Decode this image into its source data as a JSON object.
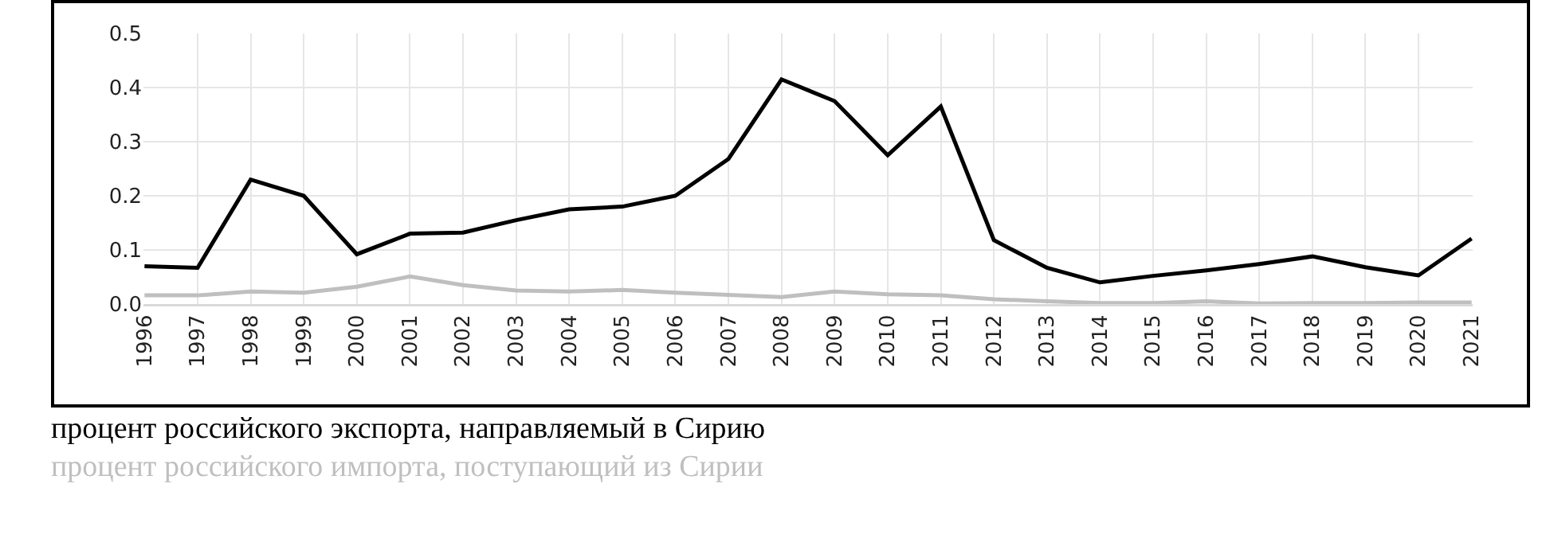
{
  "chart_data": {
    "type": "line",
    "categories": [
      "1996",
      "1997",
      "1998",
      "1999",
      "2000",
      "2001",
      "2002",
      "2003",
      "2004",
      "2005",
      "2006",
      "2007",
      "2008",
      "2009",
      "2010",
      "2011",
      "2012",
      "2013",
      "2014",
      "2015",
      "2016",
      "2017",
      "2018",
      "2019",
      "2020",
      "2021"
    ],
    "series": [
      {
        "name": "процент российского экспорта, направляемый в Сирию",
        "color": "#000000",
        "values": [
          0.07,
          0.067,
          0.23,
          0.2,
          0.092,
          0.13,
          0.132,
          0.155,
          0.175,
          0.18,
          0.2,
          0.268,
          0.415,
          0.375,
          0.275,
          0.365,
          0.118,
          0.067,
          0.04,
          0.052,
          0.062,
          0.074,
          0.088,
          0.068,
          0.053,
          0.121
        ]
      },
      {
        "name": "процент российского импорта, поступающий из Сирии",
        "color": "#bfbfbf",
        "values": [
          0.016,
          0.016,
          0.023,
          0.021,
          0.032,
          0.051,
          0.035,
          0.025,
          0.023,
          0.026,
          0.021,
          0.017,
          0.013,
          0.023,
          0.018,
          0.016,
          0.009,
          0.005,
          0.002,
          0.002,
          0.005,
          0.001,
          0.002,
          0.002,
          0.003,
          0.003
        ]
      }
    ],
    "ylim": [
      0,
      0.5
    ],
    "yticks": [
      {
        "value": 0,
        "label": "0.0"
      },
      {
        "value": 0.1,
        "label": "0.1"
      },
      {
        "value": 0.2,
        "label": "0.2"
      },
      {
        "value": 0.3,
        "label": "0.3"
      },
      {
        "value": 0.4,
        "label": "0.4"
      },
      {
        "value": 0.5,
        "label": "0.5"
      }
    ],
    "grid": true,
    "marker": "none",
    "line_style": "solid"
  }
}
